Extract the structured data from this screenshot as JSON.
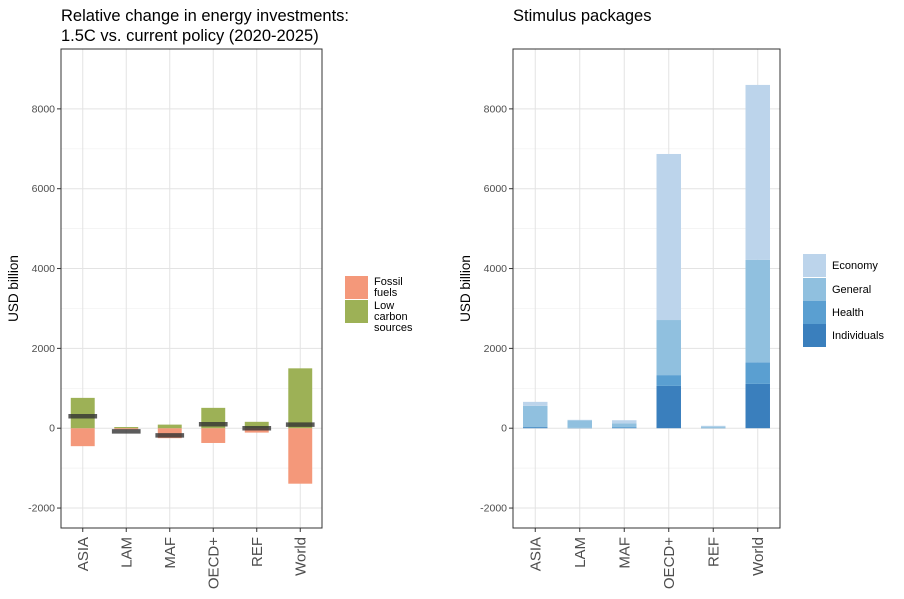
{
  "chart_data": [
    {
      "type": "bar",
      "title": "Relative change in energy investments:\n1.5C vs. current policy (2020-2025)",
      "xlabel": "",
      "ylabel": "USD billion",
      "categories": [
        "ASIA",
        "LAM",
        "MAF",
        "OECD+",
        "REF",
        "World"
      ],
      "ylim": [
        -2500,
        9500
      ],
      "yticks": [
        -2000,
        0,
        2000,
        4000,
        6000,
        8000
      ],
      "grid": true,
      "legend_position": "right",
      "series": [
        {
          "name": "Fossil\nfuels",
          "color": "#F4987A",
          "values": [
            -450,
            -30,
            -250,
            -370,
            -110,
            -1390
          ]
        },
        {
          "name": "Low carbon\nsources",
          "color": "#9DB156",
          "values": [
            760,
            30,
            90,
            510,
            160,
            1500
          ]
        }
      ],
      "net_values": [
        300,
        -80,
        -180,
        100,
        0,
        90
      ],
      "net_color": "#333333"
    },
    {
      "type": "bar",
      "stacked": true,
      "title": "Stimulus packages",
      "xlabel": "",
      "ylabel": "USD billion",
      "categories": [
        "ASIA",
        "LAM",
        "MAF",
        "OECD+",
        "REF",
        "World"
      ],
      "ylim": [
        -2500,
        9500
      ],
      "yticks": [
        -2000,
        0,
        2000,
        4000,
        6000,
        8000
      ],
      "grid": true,
      "legend_position": "right",
      "series": [
        {
          "name": "Individuals",
          "color": "#3A7FBD",
          "values": [
            20,
            5,
            10,
            1060,
            5,
            1110
          ]
        },
        {
          "name": "Health",
          "color": "#5A9FD1",
          "values": [
            10,
            5,
            20,
            270,
            5,
            540
          ]
        },
        {
          "name": "General",
          "color": "#90C0DF",
          "values": [
            530,
            190,
            90,
            1380,
            30,
            2570
          ]
        },
        {
          "name": "Economy",
          "color": "#BCD4EB",
          "values": [
            100,
            10,
            80,
            4160,
            20,
            4380
          ]
        }
      ]
    }
  ]
}
